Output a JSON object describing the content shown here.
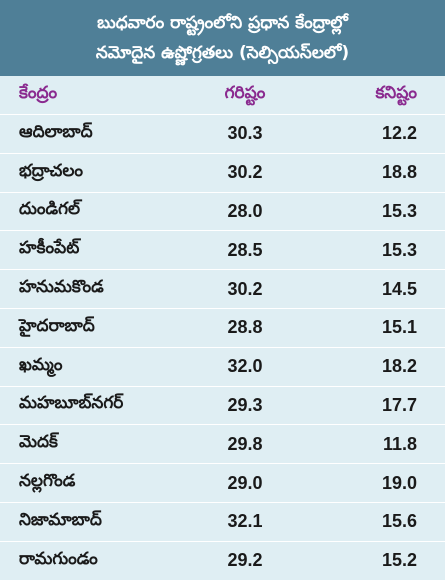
{
  "header": {
    "line1": "బుధవారం రాష్ట్రంలోని ప్రధాన కేంద్రాల్లో",
    "line2": "నమోదైన ఉష్ణోగ్రతలు (సెల్సియస్‌లలో)"
  },
  "columns": {
    "center": "కేంద్రం",
    "max": "గరిష్టం",
    "min": "కనిష్టం"
  },
  "rows": [
    {
      "name": "ఆదిలాబాద్",
      "max": "30.3",
      "min": "12.2"
    },
    {
      "name": "భద్రాచలం",
      "max": "30.2",
      "min": "18.8"
    },
    {
      "name": "దుండిగల్",
      "max": "28.0",
      "min": "15.3"
    },
    {
      "name": "హకీంపేట్",
      "max": "28.5",
      "min": "15.3"
    },
    {
      "name": "హనుమకొండ",
      "max": "30.2",
      "min": "14.5"
    },
    {
      "name": "హైదరాబాద్",
      "max": "28.8",
      "min": "15.1"
    },
    {
      "name": "ఖమ్మం",
      "max": "32.0",
      "min": "18.2"
    },
    {
      "name": "మహబూబ్‌నగర్",
      "max": "29.3",
      "min": "17.7"
    },
    {
      "name": "మెదక్",
      "max": "29.8",
      "min": "11.8"
    },
    {
      "name": "నల్లగొండ",
      "max": "29.0",
      "min": "19.0"
    },
    {
      "name": "నిజామాబాద్",
      "max": "32.1",
      "min": "15.6"
    },
    {
      "name": "రామగుండం",
      "max": "29.2",
      "min": "15.2"
    }
  ],
  "colors": {
    "header_bg": "#4f7f97",
    "column_header_text": "#8a2a8f",
    "body_bg": "#dfeef3"
  }
}
